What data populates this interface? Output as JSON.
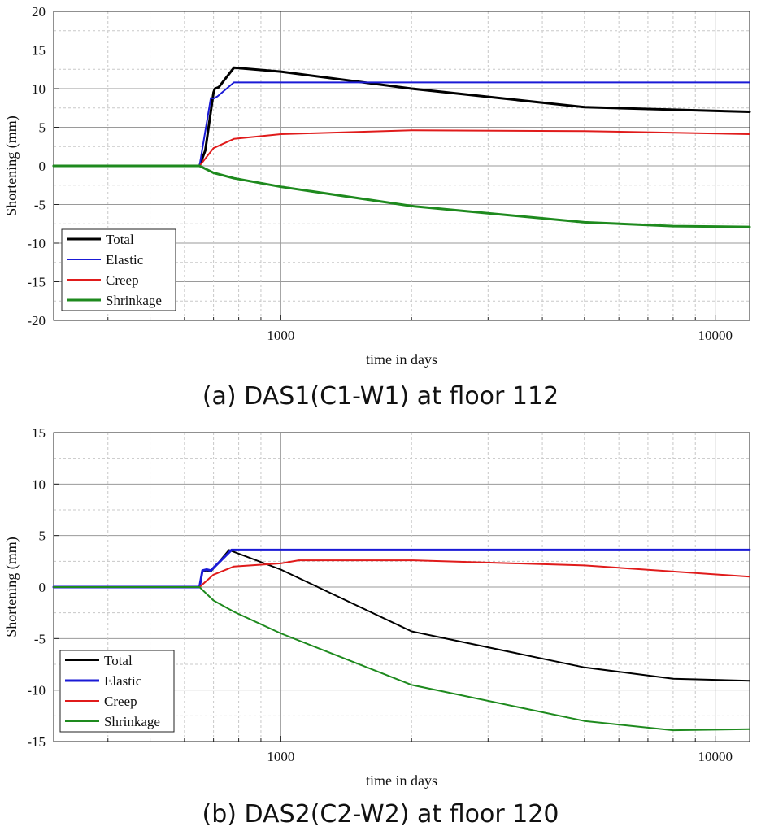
{
  "captions": {
    "a": "(a) DAS1(C1-W1) at floor 112",
    "b": "(b) DAS2(C2-W2) at floor 120"
  },
  "colors": {
    "Total": "#000000",
    "Elastic": "#1a1ad6",
    "Creep": "#e01b1b",
    "Shrinkage": "#1e8a1e",
    "grid_major": "#9a9a9a",
    "grid_minor": "#c8c8c8"
  },
  "chart_data": [
    {
      "type": "line",
      "panel": "a",
      "xlabel": "time in days",
      "ylabel": "Shortening (mm)",
      "xscale": "log",
      "xlim": [
        300,
        12000
      ],
      "ylim": [
        -20,
        20
      ],
      "yticks": [
        -20,
        -15,
        -10,
        -5,
        0,
        5,
        10,
        15,
        20
      ],
      "xticks": [
        1000,
        10000
      ],
      "xtick_labels": [
        "1000",
        "10000"
      ],
      "grid": true,
      "legend": "bottom-left",
      "series": [
        {
          "name": "Total",
          "width": 3,
          "x": [
            300,
            650,
            670,
            700,
            705,
            720,
            780,
            1000,
            2000,
            5000,
            12000
          ],
          "y": [
            0,
            0,
            2,
            9.5,
            10,
            10.2,
            12.7,
            12.2,
            10,
            7.6,
            7
          ]
        },
        {
          "name": "Elastic",
          "width": 2,
          "x": [
            300,
            650,
            690,
            700,
            705,
            715,
            780,
            12000
          ],
          "y": [
            0,
            0,
            8.8,
            8.7,
            8.8,
            9,
            10.8,
            10.8
          ]
        },
        {
          "name": "Creep",
          "width": 2,
          "x": [
            300,
            650,
            700,
            780,
            1000,
            2000,
            5000,
            12000
          ],
          "y": [
            0,
            0,
            2.3,
            3.5,
            4.1,
            4.6,
            4.5,
            4.1
          ]
        },
        {
          "name": "Shrinkage",
          "width": 3,
          "x": [
            300,
            650,
            700,
            780,
            1000,
            2000,
            5000,
            8000,
            12000
          ],
          "y": [
            0,
            0,
            -0.9,
            -1.6,
            -2.7,
            -5.2,
            -7.3,
            -7.8,
            -7.9
          ]
        }
      ]
    },
    {
      "type": "line",
      "panel": "b",
      "xlabel": "time in days",
      "ylabel": "Shortening (mm)",
      "xscale": "log",
      "xlim": [
        300,
        12000
      ],
      "ylim": [
        -15,
        15
      ],
      "yticks": [
        -15,
        -10,
        -5,
        0,
        5,
        10,
        15
      ],
      "xticks": [
        1000,
        10000
      ],
      "xtick_labels": [
        "1000",
        "10000"
      ],
      "grid": true,
      "legend": "bottom-left",
      "series": [
        {
          "name": "Total",
          "width": 2,
          "x": [
            300,
            650,
            660,
            675,
            690,
            760,
            1000,
            2000,
            5000,
            8000,
            12000
          ],
          "y": [
            0,
            0,
            1.5,
            1.6,
            1.5,
            3.6,
            1.7,
            -4.3,
            -7.8,
            -8.9,
            -9.1
          ]
        },
        {
          "name": "Elastic",
          "width": 3,
          "x": [
            300,
            650,
            660,
            675,
            690,
            770,
            12000
          ],
          "y": [
            0,
            0,
            1.6,
            1.7,
            1.6,
            3.6,
            3.6
          ]
        },
        {
          "name": "Creep",
          "width": 2,
          "x": [
            300,
            650,
            700,
            780,
            1000,
            1100,
            2000,
            5000,
            12000
          ],
          "y": [
            0,
            0,
            1.2,
            2,
            2.3,
            2.6,
            2.6,
            2.1,
            1
          ]
        },
        {
          "name": "Shrinkage",
          "width": 2,
          "x": [
            300,
            650,
            700,
            780,
            1000,
            2000,
            5000,
            8000,
            12000
          ],
          "y": [
            0,
            0,
            -1.3,
            -2.4,
            -4.5,
            -9.5,
            -13,
            -13.9,
            -13.8
          ]
        }
      ]
    }
  ]
}
